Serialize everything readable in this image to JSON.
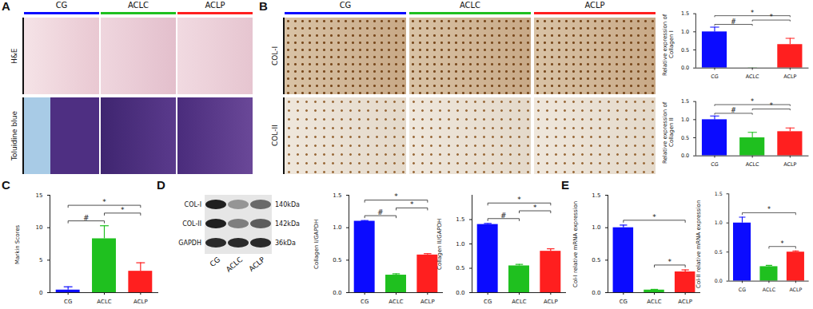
{
  "chart_data": [
    {
      "panel_label": "B",
      "type": "bar",
      "ylabel": "Relative expression of Collagen I",
      "categories": [
        "CG",
        "ACLC",
        "ACLP"
      ],
      "values": [
        1.0,
        0.0,
        0.65
      ],
      "errors": [
        0.13,
        0.0,
        0.17
      ],
      "colors": [
        "#0b0bff",
        "#1fc01f",
        "#ff1f1f"
      ],
      "ylim": [
        0,
        1.5
      ],
      "yticks": [
        {
          "value": 0,
          "label": "0.0"
        },
        {
          "value": 0.5,
          "label": "0.5"
        },
        {
          "value": 1,
          "label": "1.0"
        },
        {
          "value": 1.5,
          "label": "1.5"
        }
      ],
      "annotations": [
        {
          "from": "CG",
          "to": "ACLC",
          "text": "#"
        },
        {
          "from": "ACLC",
          "to": "ACLP",
          "text": "*"
        },
        {
          "from": "CG",
          "to": "ACLP",
          "text": "*"
        }
      ]
    },
    {
      "type": "bar",
      "ylabel": "Relative expression of Collagen II",
      "categories": [
        "CG",
        "ACLC",
        "ACLP"
      ],
      "values": [
        1.0,
        0.5,
        0.67
      ],
      "errors": [
        0.1,
        0.15,
        0.1
      ],
      "colors": [
        "#0b0bff",
        "#1fc01f",
        "#ff1f1f"
      ],
      "ylim": [
        0,
        1.5
      ],
      "yticks": [
        {
          "value": 0,
          "label": "0.0"
        },
        {
          "value": 0.5,
          "label": "0.5"
        },
        {
          "value": 1,
          "label": "1.0"
        },
        {
          "value": 1.5,
          "label": "1.5"
        }
      ],
      "annotations": [
        {
          "from": "CG",
          "to": "ACLC",
          "text": "#"
        },
        {
          "from": "ACLC",
          "to": "ACLP",
          "text": "*"
        },
        {
          "from": "CG",
          "to": "ACLP",
          "text": "*"
        }
      ]
    },
    {
      "panel_label": "C",
      "type": "bar",
      "ylabel": "Markin Scores",
      "categories": [
        "CG",
        "ACLC",
        "ACLP"
      ],
      "values": [
        0.4,
        8.3,
        3.3
      ],
      "errors": [
        0.5,
        2.0,
        1.3
      ],
      "colors": [
        "#0b0bff",
        "#1fc01f",
        "#ff1f1f"
      ],
      "ylim": [
        0,
        15
      ],
      "yticks": [
        0,
        5,
        10,
        15
      ],
      "annotations": [
        {
          "from": "CG",
          "to": "ACLC",
          "text": "#"
        },
        {
          "from": "ACLC",
          "to": "ACLP",
          "text": "*"
        },
        {
          "from": "CG",
          "to": "ACLP",
          "text": "*"
        }
      ]
    },
    {
      "type": "bar",
      "ylabel": "Collagen I/GAPDH",
      "categories": [
        "CG",
        "ACLC",
        "ACLP"
      ],
      "values": [
        1.1,
        0.27,
        0.58
      ],
      "errors": [
        0.01,
        0.02,
        0.02
      ],
      "colors": [
        "#0b0bff",
        "#1fc01f",
        "#ff1f1f"
      ],
      "ylim": [
        0,
        1.5
      ],
      "yticks": [
        {
          "value": 0,
          "label": "0.0"
        },
        {
          "value": 0.5,
          "label": "0.5"
        },
        {
          "value": 1,
          "label": "1.0"
        },
        {
          "value": 1.5,
          "label": "1.5"
        }
      ],
      "annotations": [
        {
          "from": "CG",
          "to": "ACLC",
          "text": "#"
        },
        {
          "from": "ACLC",
          "to": "ACLP",
          "text": "*"
        },
        {
          "from": "CG",
          "to": "ACLP",
          "text": "*"
        }
      ]
    },
    {
      "type": "bar",
      "ylabel": "Collagen II/GAPDH",
      "categories": [
        "CG",
        "ACLC",
        "ACLP"
      ],
      "values": [
        1.4,
        0.55,
        0.85
      ],
      "errors": [
        0.02,
        0.03,
        0.05
      ],
      "colors": [
        "#0b0bff",
        "#1fc01f",
        "#ff1f1f"
      ],
      "ylim": [
        0,
        2
      ],
      "yticks": [
        {
          "value": 0,
          "label": "0.0"
        },
        {
          "value": 0.5,
          "label": "0.5"
        },
        {
          "value": 1,
          "label": "1.0"
        },
        {
          "value": 1.5,
          "label": "1.5"
        }
      ],
      "annotations": [
        {
          "from": "CG",
          "to": "ACLC",
          "text": "#"
        },
        {
          "from": "ACLC",
          "to": "ACLP",
          "text": "*"
        },
        {
          "from": "CG",
          "to": "ACLP",
          "text": "*"
        }
      ]
    },
    {
      "panel_label": "E",
      "type": "bar",
      "ylabel": "Col-I relative mRNA expression",
      "categories": [
        "CG",
        "ACLC",
        "ACLP"
      ],
      "values": [
        1.0,
        0.04,
        0.32
      ],
      "errors": [
        0.04,
        0.01,
        0.03
      ],
      "colors": [
        "#0b0bff",
        "#1fc01f",
        "#ff1f1f"
      ],
      "ylim": [
        0,
        1.5
      ],
      "yticks": [
        {
          "value": 0,
          "label": "0.0"
        },
        {
          "value": 0.5,
          "label": "0.5"
        },
        {
          "value": 1,
          "label": "1.0"
        },
        {
          "value": 1.5,
          "label": "1.5"
        }
      ],
      "annotations": [
        {
          "from": "ACLC",
          "to": "ACLP",
          "text": "*"
        },
        {
          "from": "CG",
          "to": "ACLP",
          "text": "*"
        }
      ]
    },
    {
      "type": "bar",
      "ylabel": "Col-II relative mRNA expression",
      "categories": [
        "CG",
        "ACLC",
        "ACLP"
      ],
      "values": [
        1.0,
        0.25,
        0.5
      ],
      "errors": [
        0.1,
        0.02,
        0.02
      ],
      "colors": [
        "#0b0bff",
        "#1fc01f",
        "#ff1f1f"
      ],
      "ylim": [
        0,
        1.5
      ],
      "yticks": [
        {
          "value": 0,
          "label": "0.0"
        },
        {
          "value": 0.5,
          "label": "0.5"
        },
        {
          "value": 1,
          "label": "1.0"
        },
        {
          "value": 1.5,
          "label": "1.5"
        }
      ],
      "annotations": [
        {
          "from": "ACLC",
          "to": "ACLP",
          "text": "*"
        },
        {
          "from": "CG",
          "to": "ACLP",
          "text": "*"
        }
      ]
    }
  ],
  "image_panels": [
    {
      "panel_label": "A",
      "columns": [
        "CG",
        "ACLC",
        "ACLP"
      ],
      "column_colors": [
        "#0b0bff",
        "#1fc01f",
        "#ff1f1f"
      ],
      "rows": [
        "H&E",
        "Toluidine blue"
      ]
    },
    {
      "panel_label": "B",
      "columns": [
        "CG",
        "ACLC",
        "ACLP"
      ],
      "column_colors": [
        "#0b0bff",
        "#1fc01f",
        "#ff1f1f"
      ],
      "rows": [
        "COL-I",
        "COL-II"
      ]
    },
    {
      "panel_label": "D",
      "bands": [
        "COL-I",
        "COL-II",
        "GAPDH"
      ],
      "band_sizes": [
        "140kDa",
        "142kDa",
        "36kDa"
      ],
      "lanes": [
        "CG",
        "ACLC",
        "ACLP"
      ]
    }
  ]
}
